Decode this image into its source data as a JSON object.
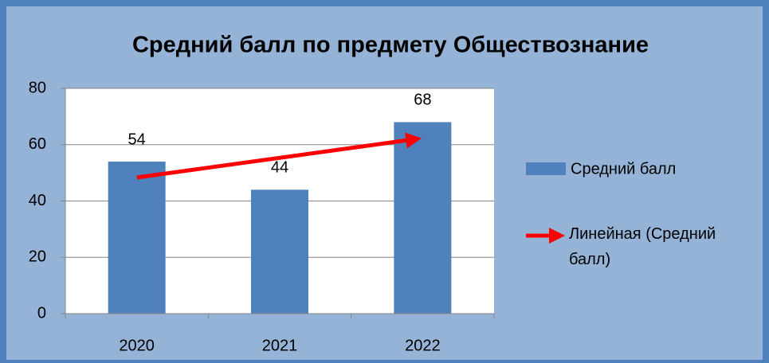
{
  "chart_data": {
    "type": "bar",
    "title": "Средний балл по предмету Обществознание",
    "categories": [
      "2020",
      "2021",
      "2022"
    ],
    "series": [
      {
        "name": "Средний балл",
        "color": "#4f81bd",
        "values": [
          54,
          44,
          68
        ]
      }
    ],
    "trendline": {
      "type": "linear",
      "name": "Линейная (Средний балл)",
      "color": "#ff0000"
    },
    "ylim": [
      0,
      80
    ],
    "yticks": [
      0,
      20,
      40,
      60,
      80
    ],
    "grid": true,
    "legend": "right"
  }
}
